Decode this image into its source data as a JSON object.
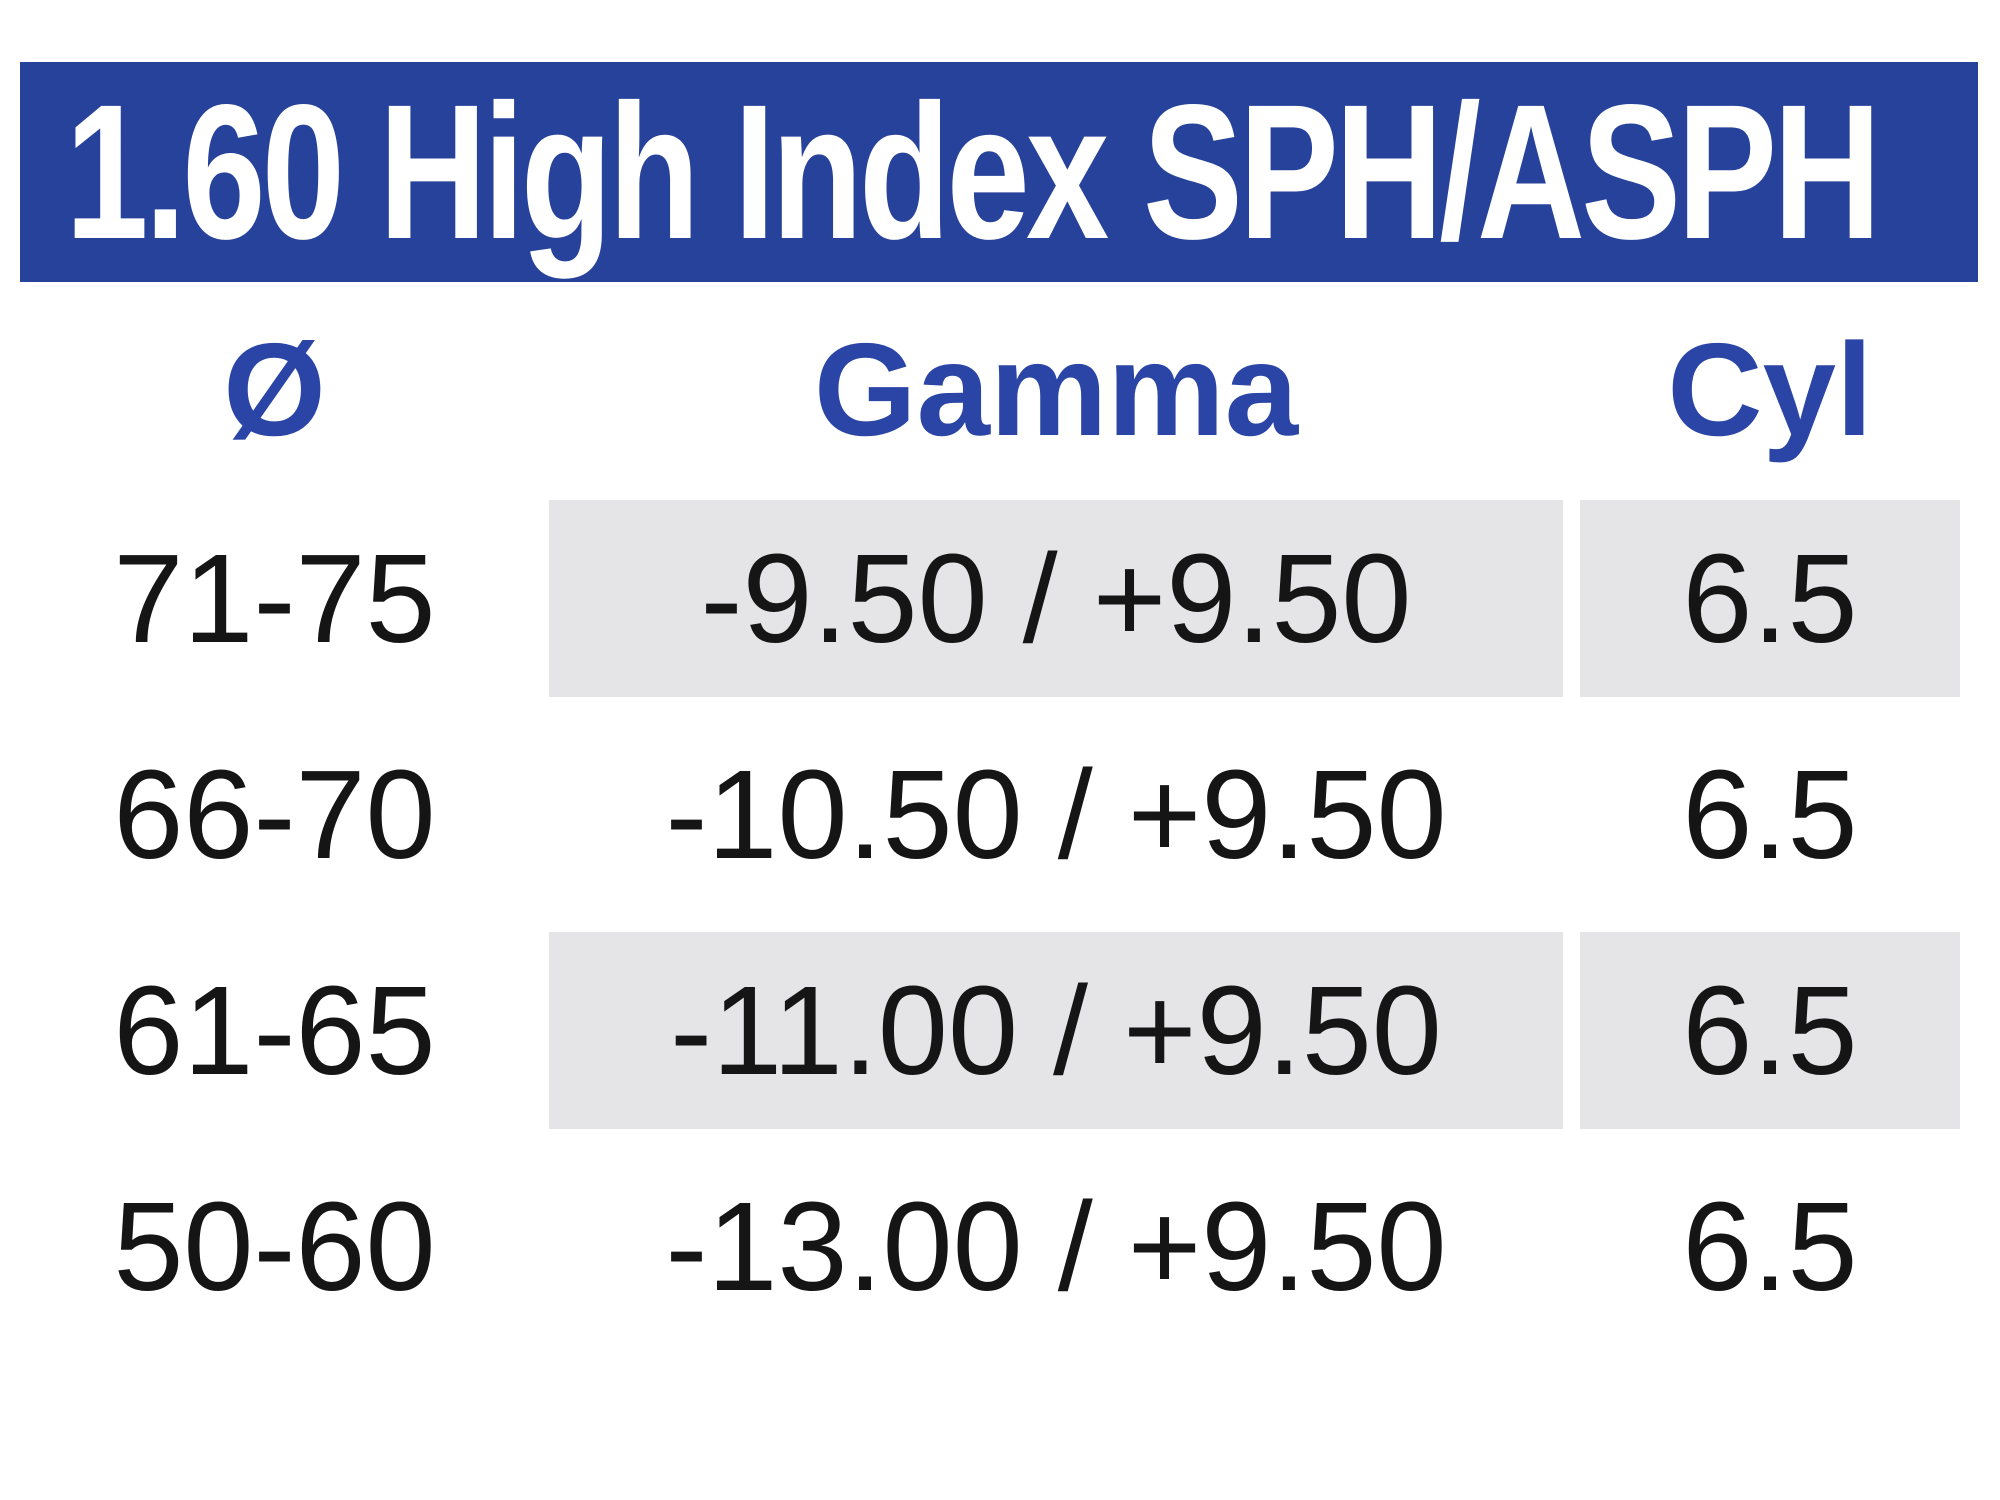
{
  "header": {
    "title": "1.60 High Index SPH/ASPH"
  },
  "table": {
    "columns": [
      {
        "key": "diameter",
        "label": "Ø"
      },
      {
        "key": "gamma",
        "label": "Gamma"
      },
      {
        "key": "cyl",
        "label": "Cyl"
      }
    ],
    "rows": [
      {
        "diameter": "71-75",
        "gamma": "-9.50 / +9.50",
        "cyl": "6.5",
        "shaded": true
      },
      {
        "diameter": "66-70",
        "gamma": "-10.50 / +9.50",
        "cyl": "6.5",
        "shaded": false
      },
      {
        "diameter": "61-65",
        "gamma": "-11.00 / +9.50",
        "cyl": "6.5",
        "shaded": true
      },
      {
        "diameter": "50-60",
        "gamma": "-13.00 / +9.50",
        "cyl": "6.5",
        "shaded": false
      }
    ]
  },
  "colors": {
    "banner_blue": "#27429B",
    "header_text_blue": "#2A45A6",
    "row_shade_gray": "#E5E5E7",
    "text_black": "#151515"
  }
}
